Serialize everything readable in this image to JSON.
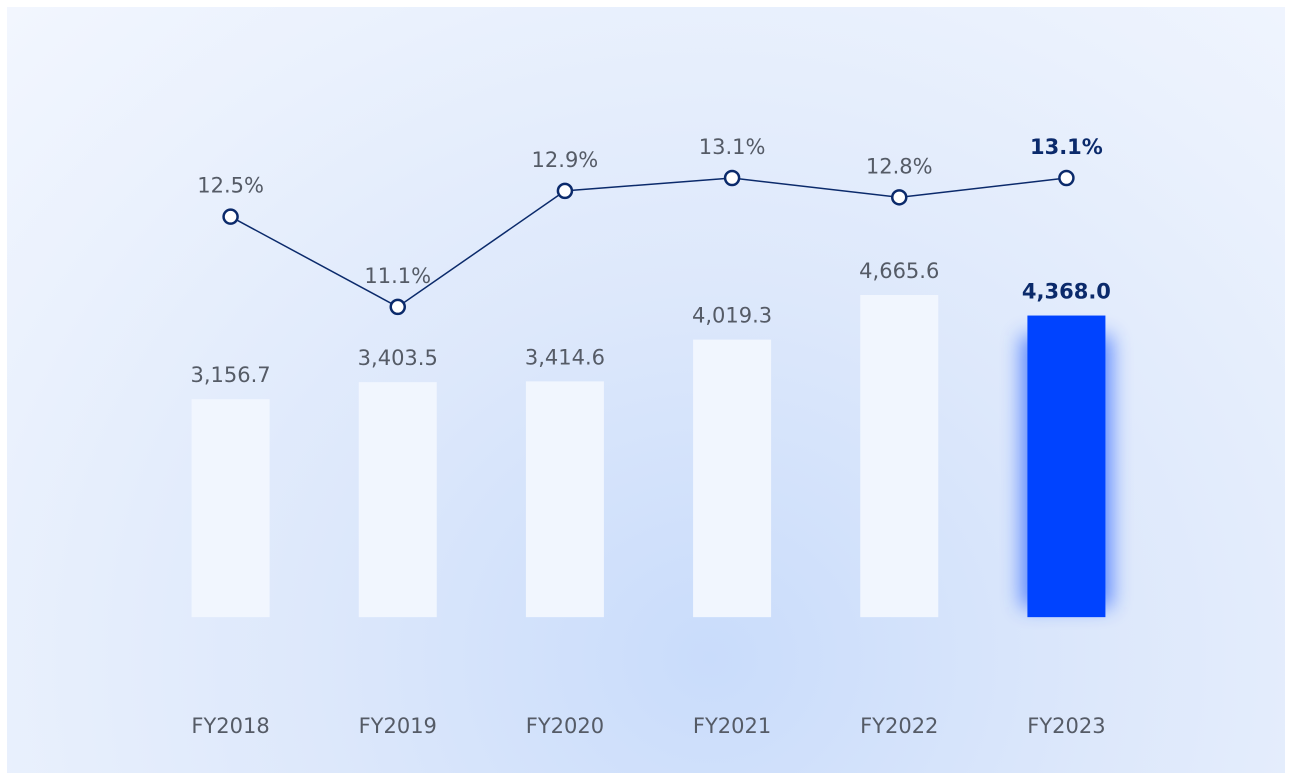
{
  "chart_data": {
    "type": "bar",
    "categories": [
      "FY2018",
      "FY2019",
      "FY2020",
      "FY2021",
      "FY2022",
      "FY2023"
    ],
    "ylim": [
      -1200,
      7200
    ],
    "y2lim": [
      5,
      14
    ],
    "series": [
      {
        "type": "bar",
        "values": [
          3156.7,
          3403.5,
          3414.6,
          4019.3,
          4665.6,
          4368.0
        ],
        "value_labels": [
          "3,156.7",
          "3,403.5",
          "3,414.6",
          "4,019.3",
          "4,665.6",
          "4,368.0"
        ],
        "colors": [
          "#f1f6fe",
          "#f1f6fe",
          "#f1f6fe",
          "#f1f6fe",
          "#f1f6fe",
          "#0043ff"
        ],
        "label_colors": [
          "#555b66",
          "#555b66",
          "#555b66",
          "#555b66",
          "#555b66",
          "#0b2a6b"
        ]
      },
      {
        "type": "line",
        "axis": "y2",
        "color": "#0b2a6b",
        "values": [
          12.5,
          11.1,
          12.9,
          13.1,
          12.8,
          13.1
        ],
        "value_labels": [
          "12.5%",
          "11.1%",
          "12.9%",
          "13.1%",
          "12.8%",
          "13.1%"
        ],
        "label_colors": [
          "#555b66",
          "#555b66",
          "#555b66",
          "#555b66",
          "#555b66",
          "#0b2a6b"
        ]
      }
    ]
  }
}
